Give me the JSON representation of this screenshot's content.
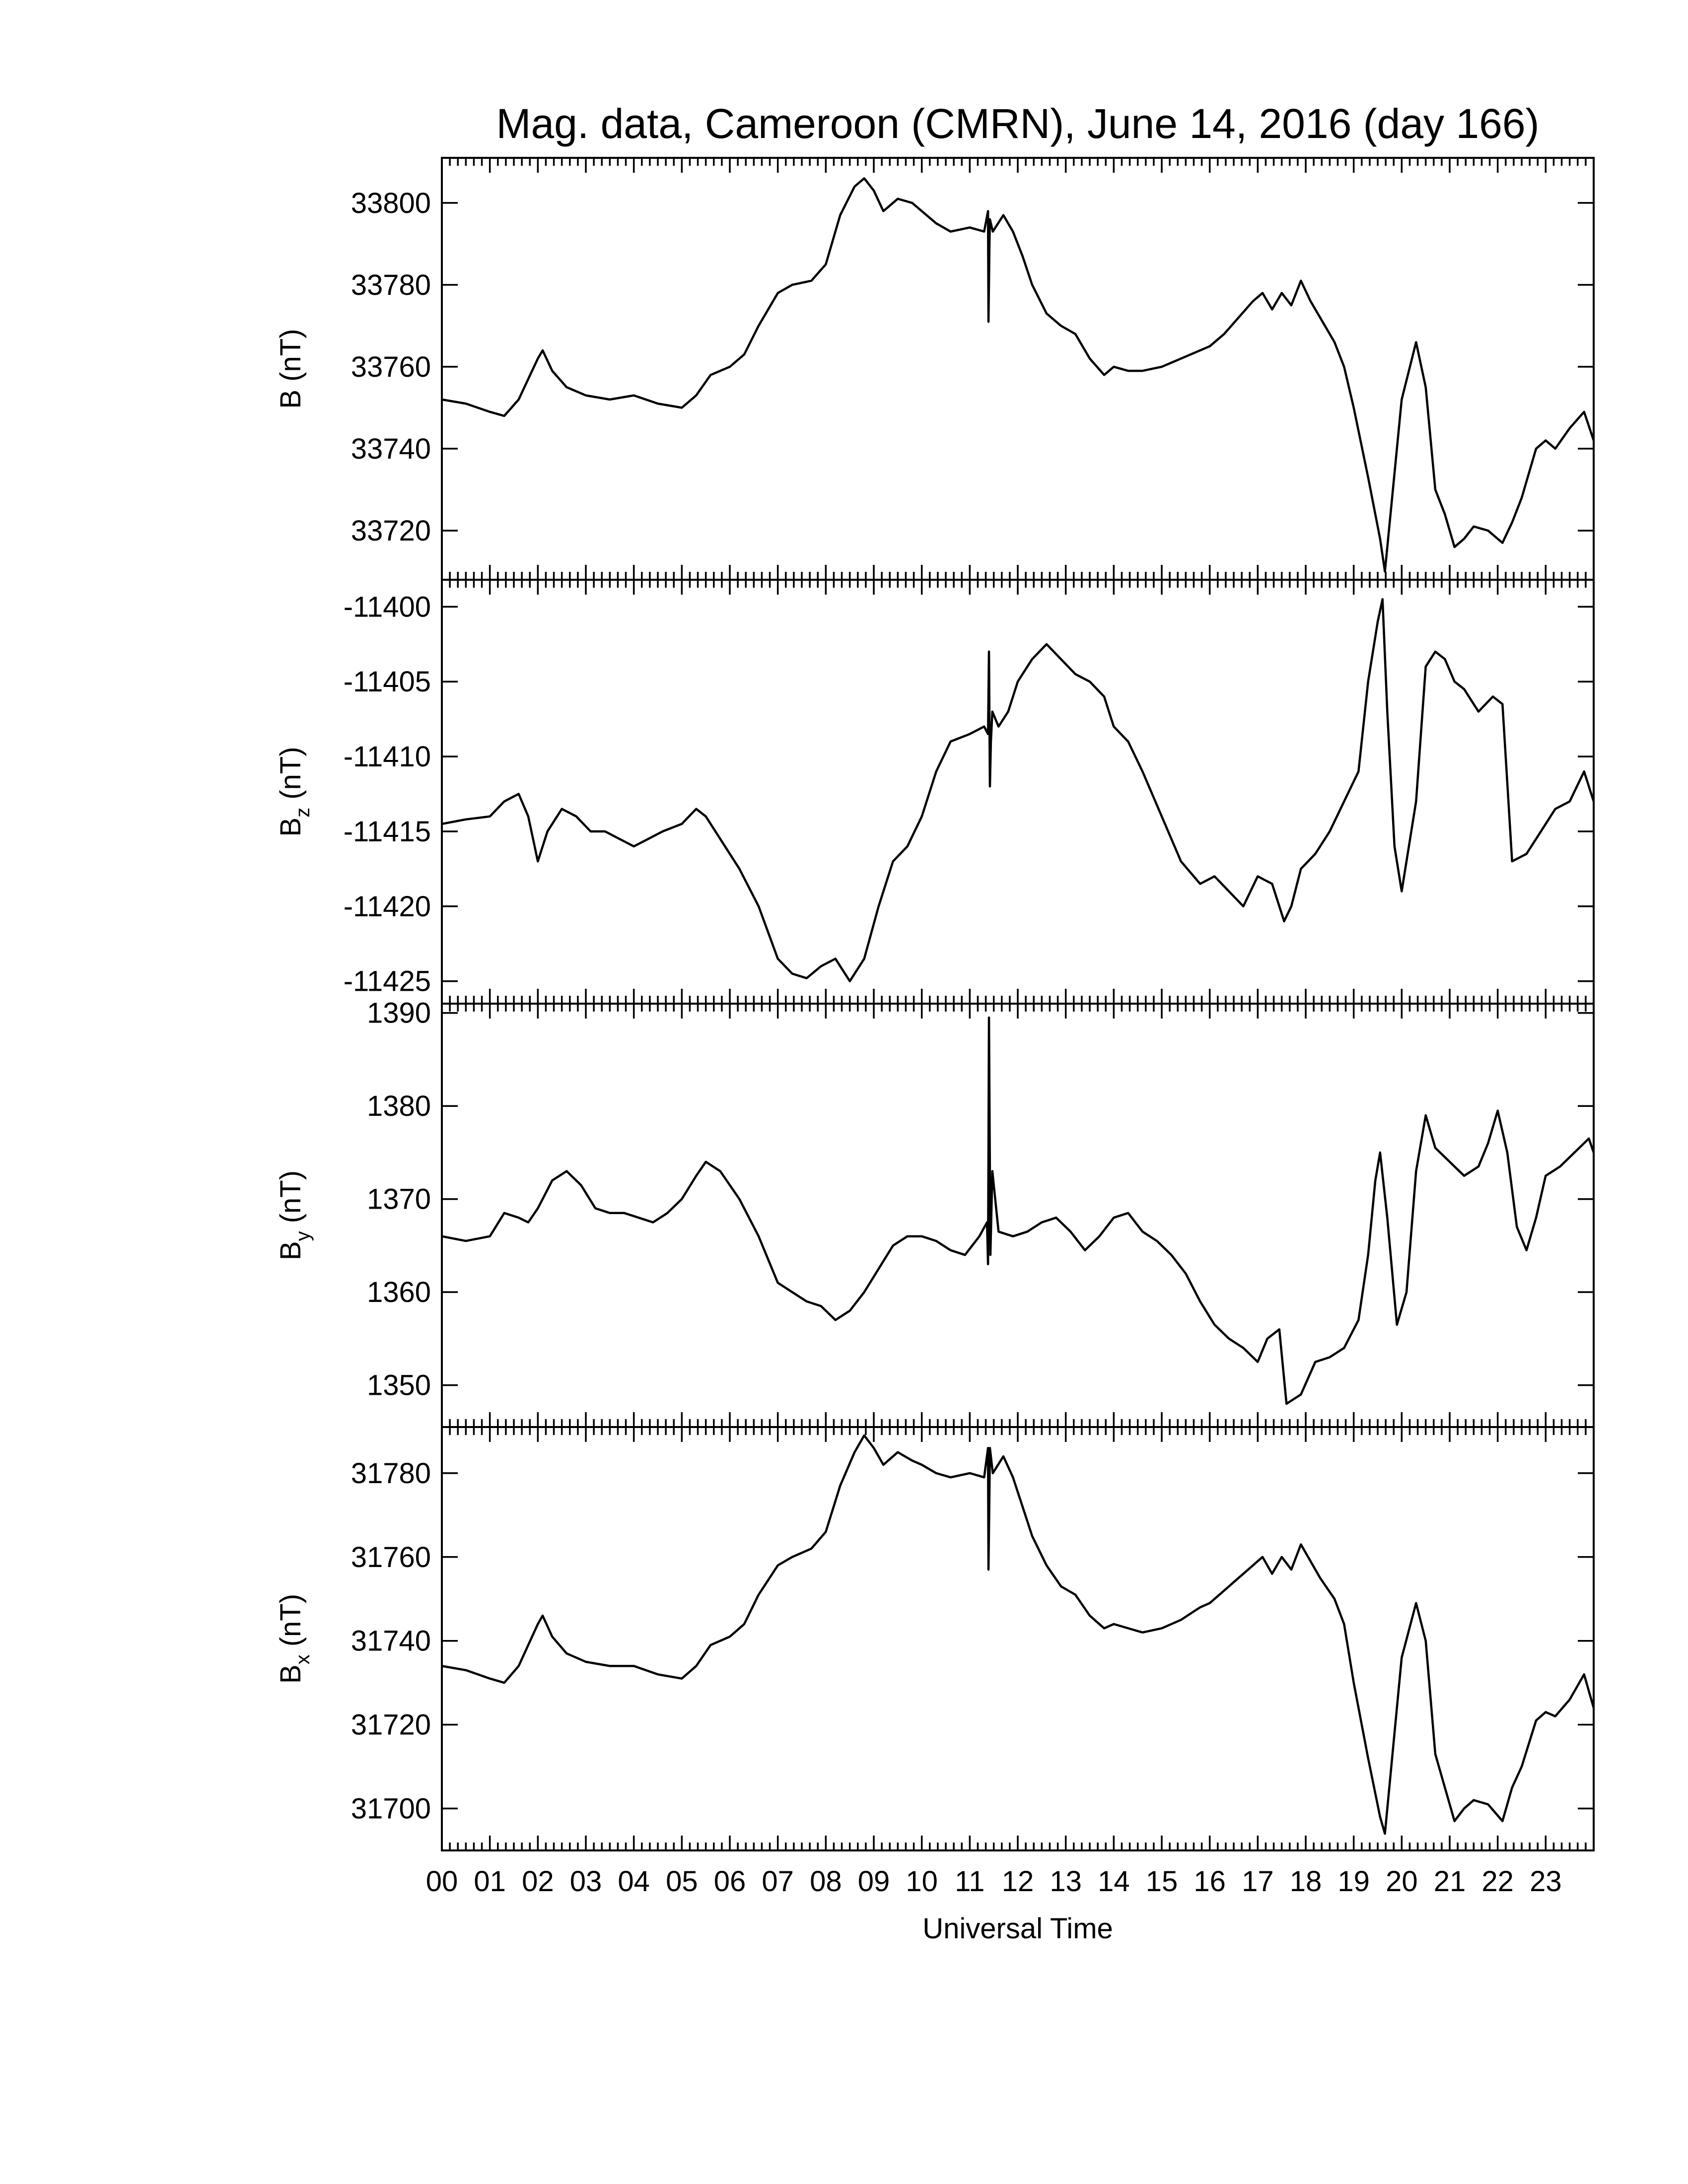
{
  "chart_data": {
    "type": "line",
    "title": "Mag. data, Cameroon (CMRN), June 14, 2016 (day 166)",
    "xlabel": "Universal Time",
    "x_tick_labels": [
      "00",
      "01",
      "02",
      "03",
      "04",
      "05",
      "06",
      "07",
      "08",
      "09",
      "10",
      "11",
      "12",
      "13",
      "14",
      "15",
      "16",
      "17",
      "18",
      "19",
      "20",
      "21",
      "22",
      "23"
    ],
    "xlim": [
      0,
      24
    ],
    "grid": false,
    "panels": [
      {
        "name": "B",
        "ylabel_main": "B",
        "ylabel_sub": "",
        "ylabel_unit": " (nT)",
        "ylim": [
          33708,
          33811
        ],
        "y_ticks": [
          33720,
          33740,
          33760,
          33780,
          33800
        ],
        "x": [
          0,
          0.5,
          1,
          1.3,
          1.6,
          1.8,
          2.0,
          2.1,
          2.3,
          2.6,
          3.0,
          3.5,
          4.0,
          4.5,
          5.0,
          5.3,
          5.6,
          6.0,
          6.3,
          6.6,
          7.0,
          7.3,
          7.7,
          8.0,
          8.3,
          8.6,
          8.8,
          9.0,
          9.2,
          9.5,
          9.8,
          10.0,
          10.3,
          10.6,
          11.0,
          11.3,
          11.38,
          11.39,
          11.41,
          11.42,
          11.48,
          11.7,
          11.9,
          12.1,
          12.3,
          12.6,
          12.9,
          13.2,
          13.5,
          13.8,
          14.0,
          14.3,
          14.6,
          15.0,
          15.4,
          15.8,
          16.0,
          16.3,
          16.6,
          16.9,
          17.1,
          17.3,
          17.5,
          17.7,
          17.9,
          18.1,
          18.3,
          18.6,
          18.8,
          19.0,
          19.3,
          19.55,
          19.65,
          19.8,
          20.0,
          20.3,
          20.5,
          20.7,
          20.9,
          21.1,
          21.3,
          21.5,
          21.8,
          22.1,
          22.3,
          22.5,
          22.8,
          23.0,
          23.2,
          23.5,
          23.8,
          24.0
        ],
        "y": [
          33752,
          33751,
          33749,
          33748,
          33752,
          33757,
          33762,
          33764,
          33759,
          33755,
          33753,
          33752,
          33753,
          33751,
          33750,
          33753,
          33758,
          33760,
          33763,
          33770,
          33778,
          33780,
          33781,
          33785,
          33797,
          33804,
          33806,
          33803,
          33798,
          33801,
          33800,
          33798,
          33795,
          33793,
          33794,
          33793,
          33798,
          33771,
          33790,
          33796,
          33793,
          33797,
          33793,
          33787,
          33780,
          33773,
          33770,
          33768,
          33762,
          33758,
          33760,
          33759,
          33759,
          33760,
          33762,
          33764,
          33765,
          33768,
          33772,
          33776,
          33778,
          33774,
          33778,
          33775,
          33781,
          33776,
          33772,
          33766,
          33760,
          33750,
          33733,
          33718,
          33710,
          33728,
          33752,
          33766,
          33755,
          33730,
          33724,
          33716,
          33718,
          33721,
          33720,
          33717,
          33722,
          33728,
          33740,
          33742,
          33740,
          33745,
          33749,
          33742
        ]
      },
      {
        "name": "Bz",
        "ylabel_main": "B",
        "ylabel_sub": "z",
        "ylabel_unit": " (nT)",
        "ylim": [
          -11426.5,
          -11398.2
        ],
        "y_ticks": [
          -11425,
          -11420,
          -11415,
          -11410,
          -11405,
          -11400
        ],
        "x": [
          0,
          0.5,
          1,
          1.3,
          1.6,
          1.8,
          2.0,
          2.2,
          2.5,
          2.8,
          3.1,
          3.4,
          3.7,
          4.0,
          4.3,
          4.6,
          5.0,
          5.3,
          5.5,
          5.8,
          6.2,
          6.6,
          7.0,
          7.3,
          7.6,
          7.9,
          8.2,
          8.5,
          8.8,
          9.1,
          9.4,
          9.7,
          10.0,
          10.3,
          10.6,
          11.0,
          11.3,
          11.38,
          11.4,
          11.42,
          11.44,
          11.47,
          11.6,
          11.8,
          12.0,
          12.3,
          12.6,
          12.9,
          13.2,
          13.5,
          13.8,
          14.0,
          14.3,
          14.6,
          15.0,
          15.4,
          15.8,
          16.1,
          16.4,
          16.7,
          17.0,
          17.3,
          17.55,
          17.7,
          17.9,
          18.2,
          18.5,
          18.8,
          19.1,
          19.3,
          19.5,
          19.6,
          19.7,
          19.85,
          20.0,
          20.3,
          20.5,
          20.7,
          20.9,
          21.1,
          21.3,
          21.6,
          21.9,
          22.1,
          22.3,
          22.6,
          22.9,
          23.2,
          23.5,
          23.8,
          24.0
        ],
        "y": [
          -11414.5,
          -11414.2,
          -11414,
          -11413,
          -11412.5,
          -11414,
          -11417,
          -11415,
          -11413.5,
          -11414,
          -11415,
          -11415,
          -11415.5,
          -11416,
          -11415.5,
          -11415,
          -11414.5,
          -11413.5,
          -11414,
          -11415.5,
          -11417.5,
          -11420,
          -11423.5,
          -11424.5,
          -11424.8,
          -11424,
          -11423.5,
          -11425,
          -11423.5,
          -11420,
          -11417,
          -11416,
          -11414,
          -11411,
          -11409,
          -11408.5,
          -11408,
          -11408.5,
          -11403,
          -11412,
          -11409,
          -11407,
          -11408,
          -11407,
          -11405,
          -11403.5,
          -11402.5,
          -11403.5,
          -11404.5,
          -11405,
          -11406,
          -11408,
          -11409,
          -11411,
          -11414,
          -11417,
          -11418.5,
          -11418,
          -11419,
          -11420,
          -11418,
          -11418.5,
          -11421,
          -11420,
          -11417.5,
          -11416.5,
          -11415,
          -11413,
          -11411,
          -11405,
          -11401,
          -11399.5,
          -11407,
          -11416,
          -11419,
          -11413,
          -11404,
          -11403,
          -11403.5,
          -11405,
          -11405.5,
          -11407,
          -11406,
          -11406.5,
          -11417,
          -11416.5,
          -11415,
          -11413.5,
          -11413,
          -11411,
          -11413
        ]
      },
      {
        "name": "By",
        "ylabel_main": "B",
        "ylabel_sub": "y",
        "ylabel_unit": " (nT)",
        "ylim": [
          1345.5,
          1391
        ],
        "y_ticks": [
          1350,
          1360,
          1370,
          1380,
          1390
        ],
        "x": [
          0,
          0.5,
          1,
          1.3,
          1.6,
          1.8,
          2.0,
          2.3,
          2.6,
          2.9,
          3.2,
          3.5,
          3.8,
          4.1,
          4.4,
          4.7,
          5.0,
          5.3,
          5.5,
          5.8,
          6.2,
          6.6,
          7.0,
          7.3,
          7.6,
          7.9,
          8.2,
          8.5,
          8.8,
          9.1,
          9.4,
          9.7,
          10.0,
          10.3,
          10.6,
          10.9,
          11.2,
          11.36,
          11.38,
          11.4,
          11.43,
          11.47,
          11.6,
          11.9,
          12.2,
          12.5,
          12.8,
          13.1,
          13.4,
          13.7,
          14.0,
          14.3,
          14.6,
          14.9,
          15.2,
          15.5,
          15.8,
          16.1,
          16.4,
          16.7,
          17.0,
          17.2,
          17.45,
          17.6,
          17.9,
          18.2,
          18.5,
          18.8,
          19.1,
          19.3,
          19.45,
          19.55,
          19.7,
          19.9,
          20.1,
          20.3,
          20.5,
          20.7,
          20.9,
          21.1,
          21.3,
          21.6,
          21.8,
          22.0,
          22.2,
          22.4,
          22.6,
          22.8,
          23.0,
          23.3,
          23.6,
          23.9,
          24.0
        ],
        "y": [
          1366,
          1365.5,
          1366,
          1368.5,
          1368,
          1367.5,
          1369,
          1372,
          1373,
          1371.5,
          1369,
          1368.5,
          1368.5,
          1368,
          1367.5,
          1368.5,
          1370,
          1372.5,
          1374,
          1373,
          1370,
          1366,
          1361,
          1360,
          1359,
          1358.5,
          1357,
          1358,
          1360,
          1362.5,
          1365,
          1366,
          1366,
          1365.5,
          1364.5,
          1364,
          1366,
          1367.5,
          1363,
          1389.5,
          1364,
          1373,
          1366.5,
          1366,
          1366.5,
          1367.5,
          1368,
          1366.5,
          1364.5,
          1366,
          1368,
          1368.5,
          1366.5,
          1365.5,
          1364,
          1362,
          1359,
          1356.5,
          1355,
          1354,
          1352.5,
          1355,
          1356,
          1348,
          1349,
          1352.5,
          1353,
          1354,
          1357,
          1364,
          1372,
          1375,
          1368,
          1356.5,
          1360,
          1373,
          1379,
          1375.5,
          1374.5,
          1373.5,
          1372.5,
          1373.5,
          1376,
          1379.5,
          1375,
          1367,
          1364.5,
          1368,
          1372.5,
          1373.5,
          1375,
          1376.5,
          1375
        ]
      },
      {
        "name": "Bx",
        "ylabel_main": "B",
        "ylabel_sub": "x",
        "ylabel_unit": " (nT)",
        "ylim": [
          31690,
          31791
        ],
        "y_ticks": [
          31700,
          31720,
          31740,
          31760,
          31780
        ],
        "x": [
          0,
          0.5,
          1,
          1.3,
          1.6,
          1.8,
          2.0,
          2.1,
          2.3,
          2.6,
          3.0,
          3.5,
          4.0,
          4.5,
          5.0,
          5.3,
          5.6,
          6.0,
          6.3,
          6.6,
          7.0,
          7.3,
          7.7,
          8.0,
          8.3,
          8.6,
          8.8,
          9.0,
          9.2,
          9.5,
          9.8,
          10.0,
          10.3,
          10.6,
          11.0,
          11.3,
          11.38,
          11.39,
          11.41,
          11.42,
          11.48,
          11.7,
          11.9,
          12.1,
          12.3,
          12.6,
          12.9,
          13.2,
          13.5,
          13.8,
          14.0,
          14.3,
          14.6,
          15.0,
          15.4,
          15.8,
          16.0,
          16.3,
          16.6,
          16.9,
          17.1,
          17.3,
          17.5,
          17.7,
          17.9,
          18.1,
          18.3,
          18.6,
          18.8,
          19.0,
          19.3,
          19.55,
          19.65,
          19.8,
          20.0,
          20.3,
          20.5,
          20.7,
          20.9,
          21.1,
          21.3,
          21.5,
          21.8,
          22.1,
          22.3,
          22.5,
          22.8,
          23.0,
          23.2,
          23.5,
          23.8,
          24.0
        ],
        "y": [
          31734,
          31733,
          31731,
          31730,
          31734,
          31739,
          31744,
          31746,
          31741,
          31737,
          31735,
          31734,
          31734,
          31732,
          31731,
          31734,
          31739,
          31741,
          31744,
          31751,
          31758,
          31760,
          31762,
          31766,
          31777,
          31785,
          31789,
          31786,
          31782,
          31785,
          31783,
          31782,
          31780,
          31779,
          31780,
          31779,
          31786,
          31757,
          31776,
          31786,
          31780,
          31784,
          31779,
          31772,
          31765,
          31758,
          31753,
          31751,
          31746,
          31743,
          31744,
          31743,
          31742,
          31743,
          31745,
          31748,
          31749,
          31752,
          31755,
          31758,
          31760,
          31756,
          31760,
          31757,
          31763,
          31759,
          31755,
          31750,
          31744,
          31730,
          31712,
          31698,
          31694,
          31712,
          31736,
          31749,
          31740,
          31713,
          31705,
          31697,
          31700,
          31702,
          31701,
          31697,
          31705,
          31710,
          31721,
          31723,
          31722,
          31726,
          31732,
          31724
        ]
      }
    ]
  }
}
